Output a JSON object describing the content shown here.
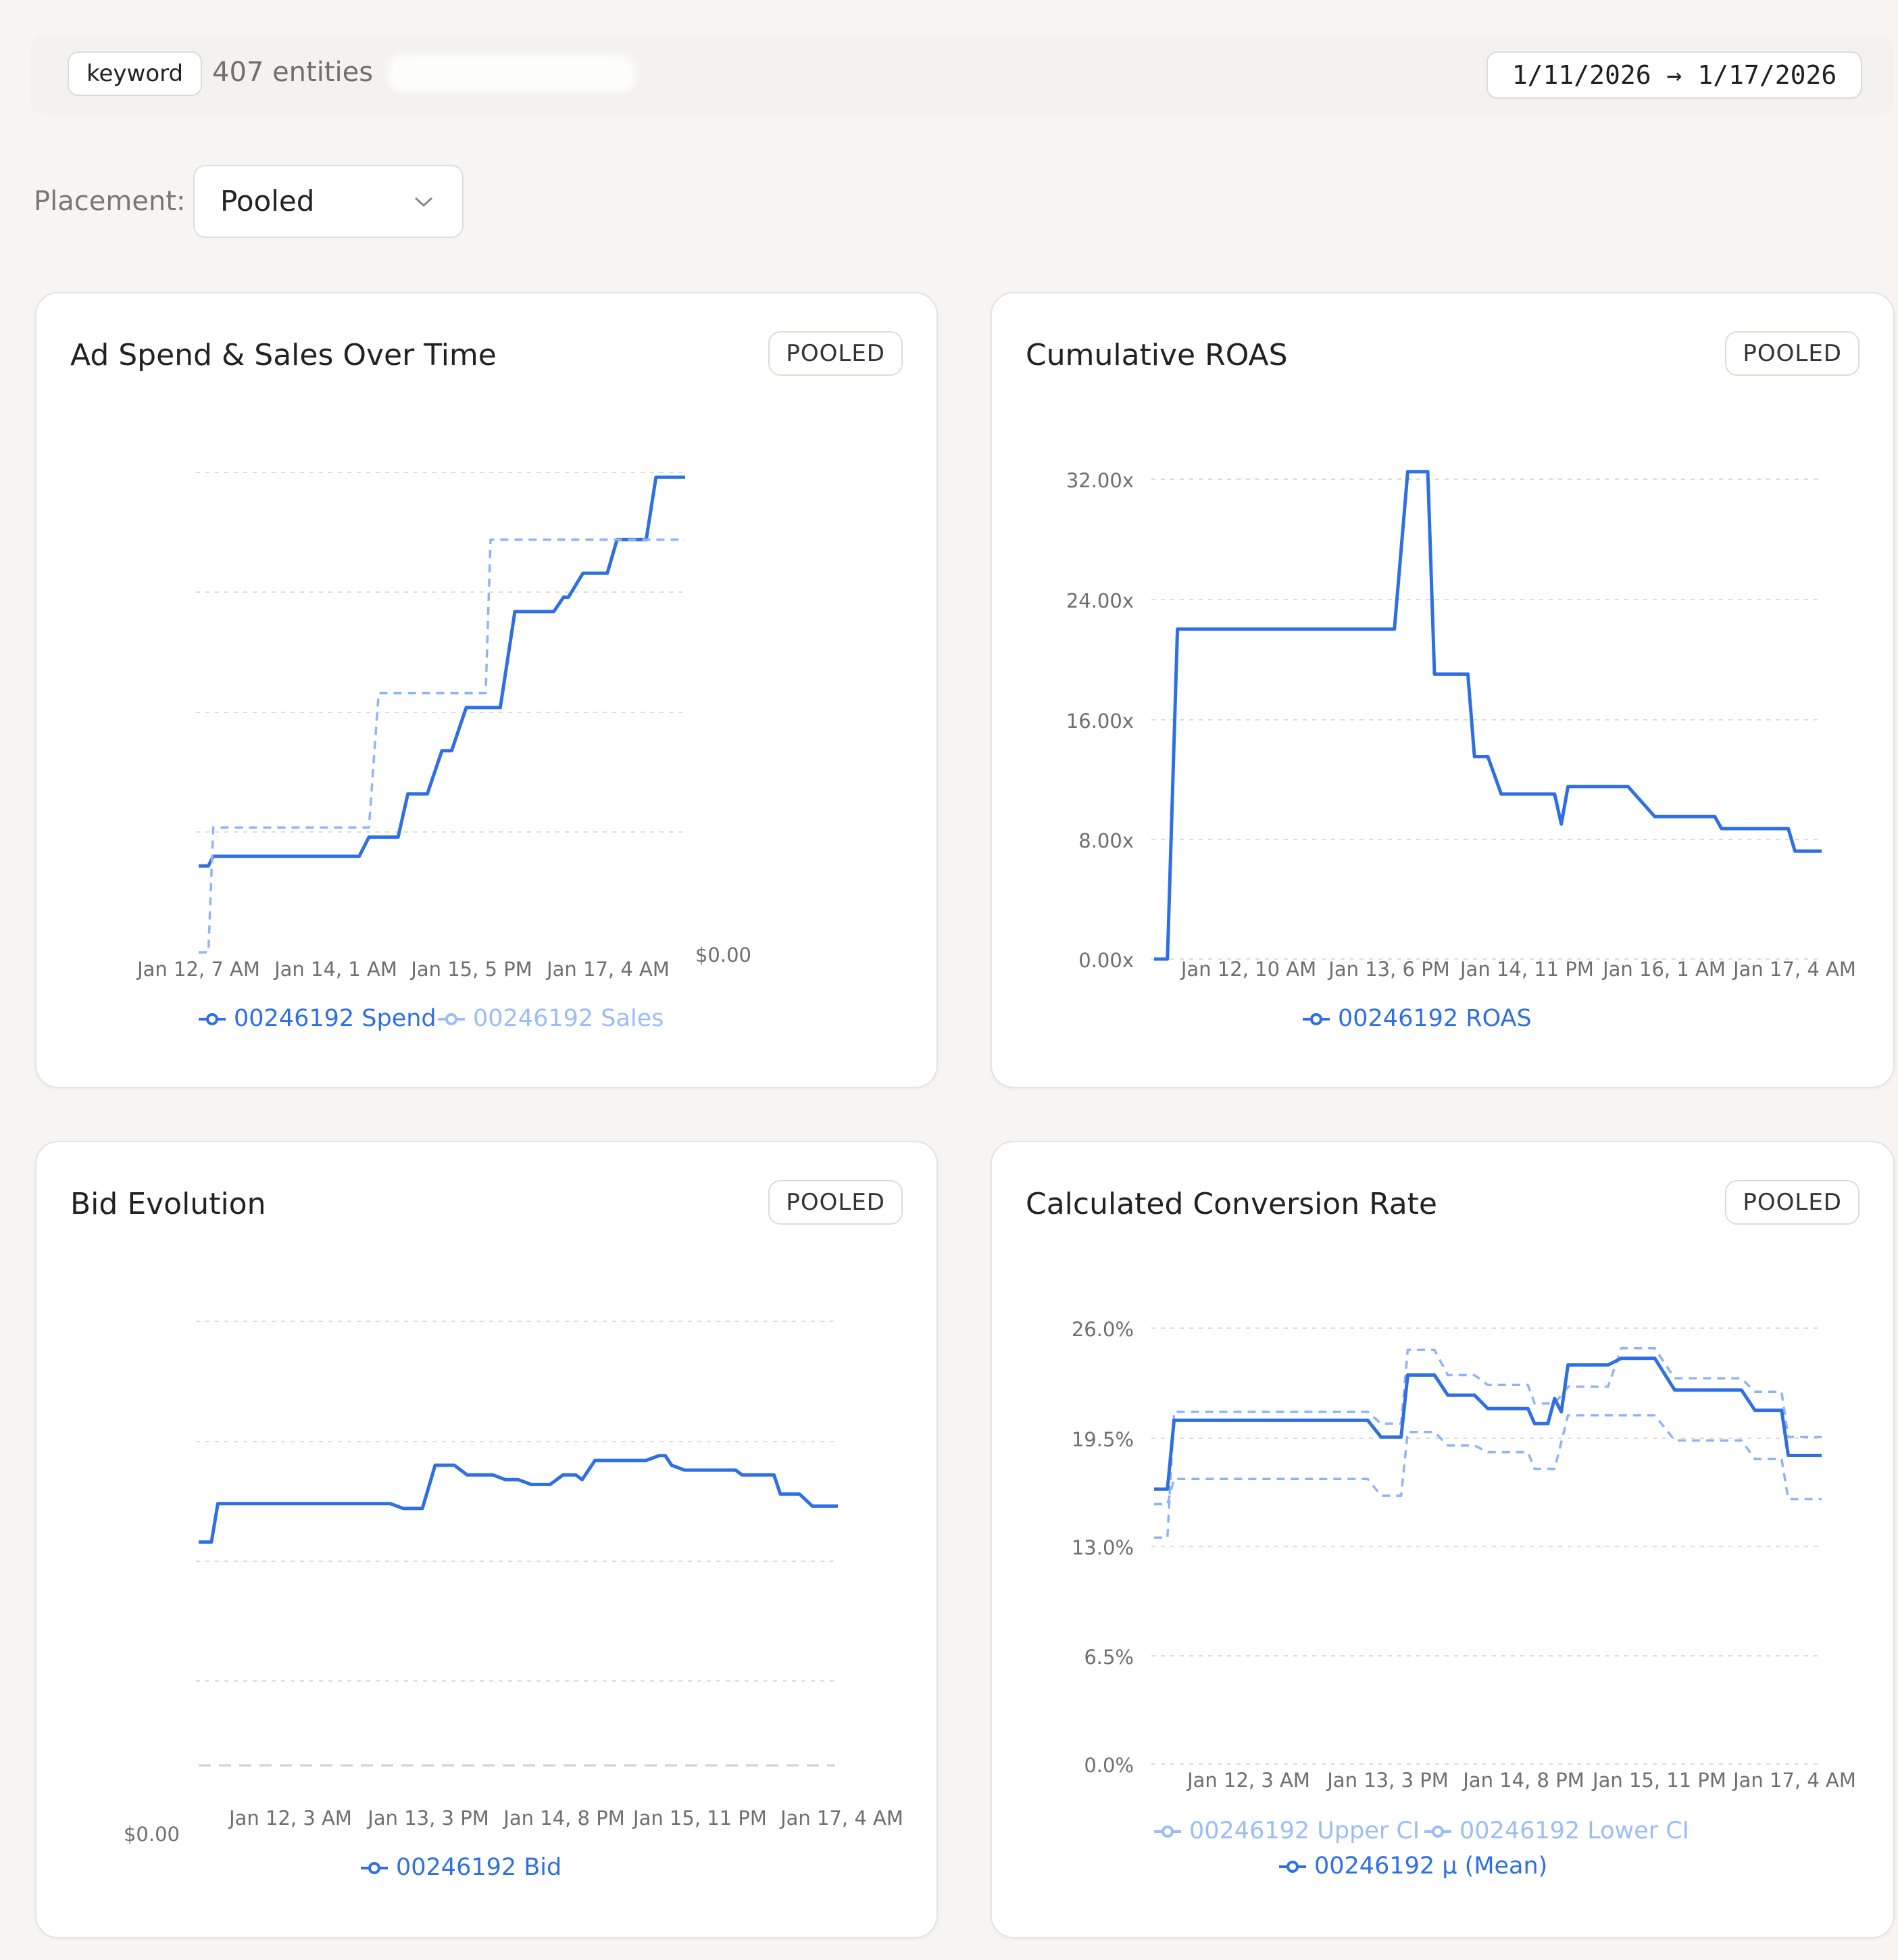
{
  "header": {
    "entity_type": "keyword",
    "entity_count": "407 entities",
    "date_range": "1/11/2026 → 1/17/2026"
  },
  "filters": {
    "placement_label": "Placement:",
    "placement_value": "Pooled"
  },
  "colors": {
    "primary": "#2f6fe4",
    "light": "#8fb4f5",
    "grid": "#dcdcdc",
    "text_muted": "#6f6f6f"
  },
  "charts": [
    {
      "title": "Ad Spend & Sales Over Time",
      "badge": "POOLED",
      "legend": [
        {
          "label": "00246192 Spend",
          "color": "#2f6fe4"
        },
        {
          "label": "00246192 Sales",
          "color": "#9bbdf6"
        }
      ]
    },
    {
      "title": "Cumulative ROAS",
      "badge": "POOLED",
      "legend": [
        {
          "label": "00246192 ROAS",
          "color": "#2f6fe4"
        }
      ]
    },
    {
      "title": "Bid Evolution",
      "badge": "POOLED",
      "legend": [
        {
          "label": "00246192 Bid",
          "color": "#2f6fe4"
        }
      ]
    },
    {
      "title": "Calculated Conversion Rate",
      "badge": "POOLED",
      "legend": [
        {
          "label": "00246192 Upper CI",
          "color": "#9bbdf6"
        },
        {
          "label": "00246192 Lower CI",
          "color": "#9bbdf6"
        },
        {
          "label": "00246192 μ (Mean)",
          "color": "#2f6fe4"
        }
      ]
    }
  ],
  "chart_data": [
    {
      "type": "line",
      "title": "Ad Spend & Sales Over Time",
      "x_ticks": [
        "Jan 12, 7 AM",
        "Jan 14, 1 AM",
        "Jan 15, 5 PM",
        "Jan 17, 4 AM"
      ],
      "y_ticks": [
        "$0.00"
      ],
      "grid": true,
      "legend_position": "bottom",
      "series": [
        {
          "name": "00246192 Spend",
          "style": "solid",
          "x": [
            0,
            0.02,
            0.03,
            0.33,
            0.35,
            0.41,
            0.43,
            0.47,
            0.5,
            0.52,
            0.55,
            0.62,
            0.65,
            0.73,
            0.75,
            0.76,
            0.79,
            0.84,
            0.86,
            0.92,
            0.94,
            1.0
          ],
          "values": [
            0.18,
            0.18,
            0.2,
            0.2,
            0.24,
            0.24,
            0.33,
            0.33,
            0.42,
            0.42,
            0.51,
            0.51,
            0.71,
            0.71,
            0.74,
            0.74,
            0.79,
            0.79,
            0.86,
            0.86,
            0.99,
            0.99
          ]
        },
        {
          "name": "00246192 Sales",
          "style": "dashed",
          "x": [
            0,
            0.02,
            0.03,
            0.35,
            0.37,
            0.59,
            0.6,
            1.0
          ],
          "values": [
            0.0,
            0.0,
            0.26,
            0.26,
            0.54,
            0.54,
            0.86,
            0.86
          ]
        }
      ]
    },
    {
      "type": "line",
      "title": "Cumulative ROAS",
      "x_ticks": [
        "Jan 12, 10 AM",
        "Jan 13, 6 PM",
        "Jan 14, 11 PM",
        "Jan 16, 1 AM",
        "Jan 17, 4 AM"
      ],
      "y_ticks": [
        "32.00x",
        "24.00x",
        "16.00x",
        "8.00x",
        "0.00x"
      ],
      "ylim": [
        0,
        32
      ],
      "grid": true,
      "legend_position": "bottom",
      "series": [
        {
          "name": "00246192 ROAS",
          "x": [
            0,
            0.02,
            0.035,
            0.36,
            0.38,
            0.41,
            0.42,
            0.47,
            0.48,
            0.5,
            0.52,
            0.6,
            0.61,
            0.62,
            0.71,
            0.74,
            0.75,
            0.84,
            0.85,
            0.95,
            0.96,
            1.0
          ],
          "values": [
            0,
            0,
            22.0,
            22.0,
            32.5,
            32.5,
            19.0,
            19.0,
            13.5,
            13.5,
            11.0,
            11.0,
            9.0,
            11.5,
            11.5,
            10.0,
            9.5,
            9.5,
            8.7,
            8.7,
            7.2,
            7.2
          ]
        }
      ]
    },
    {
      "type": "line",
      "title": "Bid Evolution",
      "x_ticks": [
        "Jan 12, 3 AM",
        "Jan 13, 3 PM",
        "Jan 14, 8 PM",
        "Jan 15, 11 PM",
        "Jan 17, 4 AM"
      ],
      "y_ticks": [
        "$0.00"
      ],
      "grid": true,
      "legend_position": "bottom",
      "series": [
        {
          "name": "00246192 Bid",
          "x": [
            0,
            0.02,
            0.03,
            0.3,
            0.32,
            0.35,
            0.37,
            0.4,
            0.42,
            0.46,
            0.48,
            0.5,
            0.52,
            0.55,
            0.57,
            0.59,
            0.6,
            0.62,
            0.7,
            0.72,
            0.73,
            0.74,
            0.76,
            0.78,
            0.8,
            0.84,
            0.85,
            0.9,
            0.91,
            0.94,
            0.96,
            1.0
          ],
          "values": [
            0.54,
            0.54,
            0.62,
            0.62,
            0.61,
            0.61,
            0.7,
            0.7,
            0.68,
            0.68,
            0.67,
            0.67,
            0.66,
            0.66,
            0.68,
            0.68,
            0.67,
            0.71,
            0.71,
            0.72,
            0.72,
            0.7,
            0.69,
            0.69,
            0.69,
            0.69,
            0.68,
            0.68,
            0.64,
            0.64,
            0.615,
            0.615
          ]
        }
      ]
    },
    {
      "type": "line",
      "title": "Calculated Conversion Rate",
      "x_ticks": [
        "Jan 12, 3 AM",
        "Jan 13, 3 PM",
        "Jan 14, 8 PM",
        "Jan 15, 11 PM",
        "Jan 17, 4 AM"
      ],
      "y_ticks": [
        "26.0%",
        "19.5%",
        "13.0%",
        "6.5%",
        "0.0%"
      ],
      "ylim": [
        0,
        26
      ],
      "grid": true,
      "legend_position": "bottom",
      "series": [
        {
          "name": "00246192 Upper CI",
          "style": "dashed",
          "x": [
            0,
            0.02,
            0.03,
            0.32,
            0.34,
            0.37,
            0.38,
            0.42,
            0.44,
            0.48,
            0.5,
            0.56,
            0.57,
            0.6,
            0.62,
            0.68,
            0.7,
            0.75,
            0.78,
            0.88,
            0.9,
            0.94,
            0.95,
            1.0
          ],
          "values": [
            13.5,
            13.5,
            21.0,
            21.0,
            20.3,
            20.3,
            24.7,
            24.7,
            23.2,
            23.2,
            22.6,
            22.6,
            21.5,
            21.5,
            22.5,
            22.5,
            24.8,
            24.8,
            23.0,
            23.0,
            22.2,
            22.2,
            19.5,
            19.5
          ]
        },
        {
          "name": "00246192 Lower CI",
          "style": "dashed",
          "x": [
            0,
            0.02,
            0.03,
            0.32,
            0.34,
            0.37,
            0.38,
            0.42,
            0.44,
            0.48,
            0.5,
            0.56,
            0.57,
            0.6,
            0.62,
            0.68,
            0.7,
            0.75,
            0.78,
            0.88,
            0.9,
            0.94,
            0.95,
            1.0
          ],
          "values": [
            15.5,
            15.5,
            17.0,
            17.0,
            16.0,
            16.0,
            19.8,
            19.8,
            19.0,
            19.0,
            18.6,
            18.6,
            17.6,
            17.6,
            20.8,
            20.8,
            20.8,
            20.8,
            19.3,
            19.3,
            18.2,
            18.2,
            15.8,
            15.8
          ]
        },
        {
          "name": "00246192 μ (Mean)",
          "style": "solid",
          "x": [
            0,
            0.02,
            0.03,
            0.32,
            0.34,
            0.37,
            0.38,
            0.42,
            0.44,
            0.48,
            0.5,
            0.56,
            0.57,
            0.59,
            0.6,
            0.61,
            0.62,
            0.68,
            0.7,
            0.75,
            0.78,
            0.88,
            0.9,
            0.94,
            0.95,
            1.0
          ],
          "values": [
            16.4,
            16.4,
            20.5,
            20.5,
            19.5,
            19.5,
            23.2,
            23.2,
            22.0,
            22.0,
            21.2,
            21.2,
            20.3,
            20.3,
            21.8,
            21.0,
            23.8,
            23.8,
            24.2,
            24.2,
            22.3,
            22.3,
            21.1,
            21.1,
            18.4,
            18.4
          ]
        }
      ]
    }
  ]
}
